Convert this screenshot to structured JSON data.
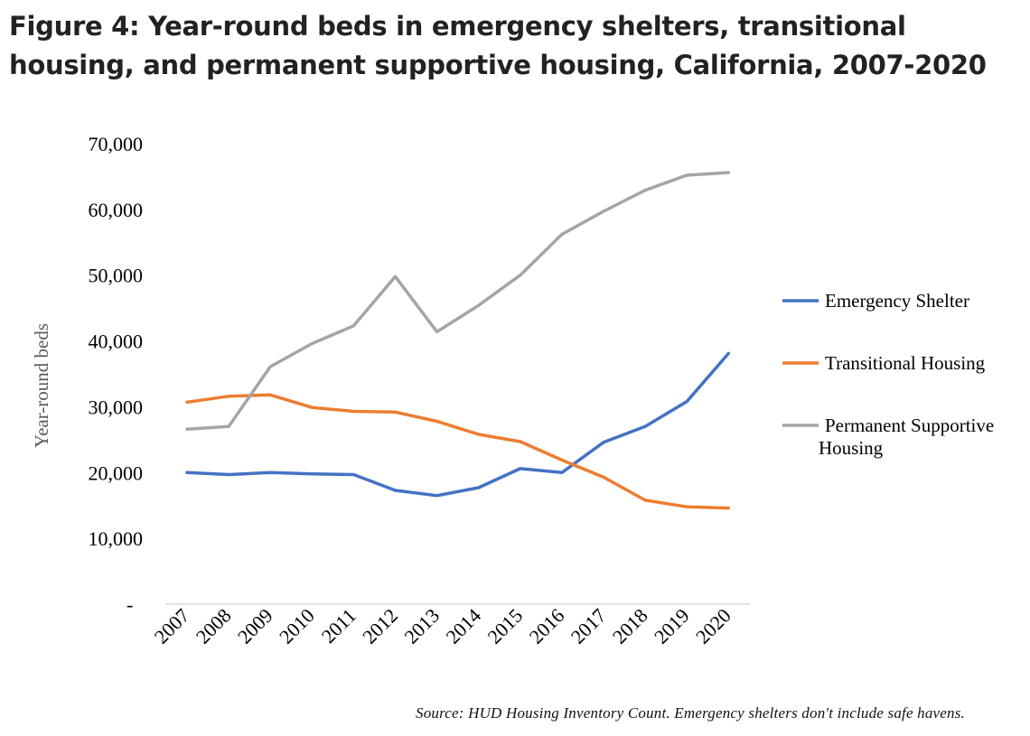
{
  "figure": {
    "title": "Figure 4: Year-round beds in emergency shelters, transitional housing, and permanent supportive housing, California, 2007-2020",
    "source": "Source: HUD Housing Inventory Count. Emergency shelters don't include safe havens."
  },
  "chart_data": {
    "type": "line",
    "title": "",
    "xlabel": "",
    "ylabel": "Year-round beds",
    "x": [
      "2007",
      "2008",
      "2009",
      "2010",
      "2011",
      "2012",
      "2013",
      "2014",
      "2015",
      "2016",
      "2017",
      "2018",
      "2019",
      "2020"
    ],
    "ylim": [
      0,
      70000
    ],
    "yticks": [
      {
        "value": 0,
        "label": "-"
      },
      {
        "value": 10000,
        "label": "10,000"
      },
      {
        "value": 20000,
        "label": "20,000"
      },
      {
        "value": 30000,
        "label": "30,000"
      },
      {
        "value": 40000,
        "label": "40,000"
      },
      {
        "value": 50000,
        "label": "50,000"
      },
      {
        "value": 60000,
        "label": "60,000"
      },
      {
        "value": 70000,
        "label": "70,000"
      }
    ],
    "grid": false,
    "legend_position": "right",
    "series": [
      {
        "name": "Emergency Shelter",
        "legend_lines": [
          "Emergency Shelter"
        ],
        "color": "#4472C4",
        "values": [
          20000,
          19700,
          20000,
          19800,
          19700,
          17300,
          16500,
          17700,
          20600,
          20000,
          24600,
          27000,
          30800,
          38100
        ]
      },
      {
        "name": "Transitional Housing",
        "legend_lines": [
          "Transitional Housing"
        ],
        "color": "#ED7D31",
        "values": [
          30700,
          31600,
          31800,
          29900,
          29300,
          29200,
          27800,
          25800,
          24700,
          21900,
          19300,
          15800,
          14800,
          14600
        ]
      },
      {
        "name": "Permanent Supportive Housing",
        "legend_lines": [
          "Permanent Supportive",
          "Housing"
        ],
        "color": "#A5A5A5",
        "values": [
          26600,
          27000,
          36100,
          39600,
          42300,
          49800,
          41400,
          45400,
          50000,
          56200,
          59700,
          62900,
          65200,
          65600
        ]
      }
    ]
  }
}
